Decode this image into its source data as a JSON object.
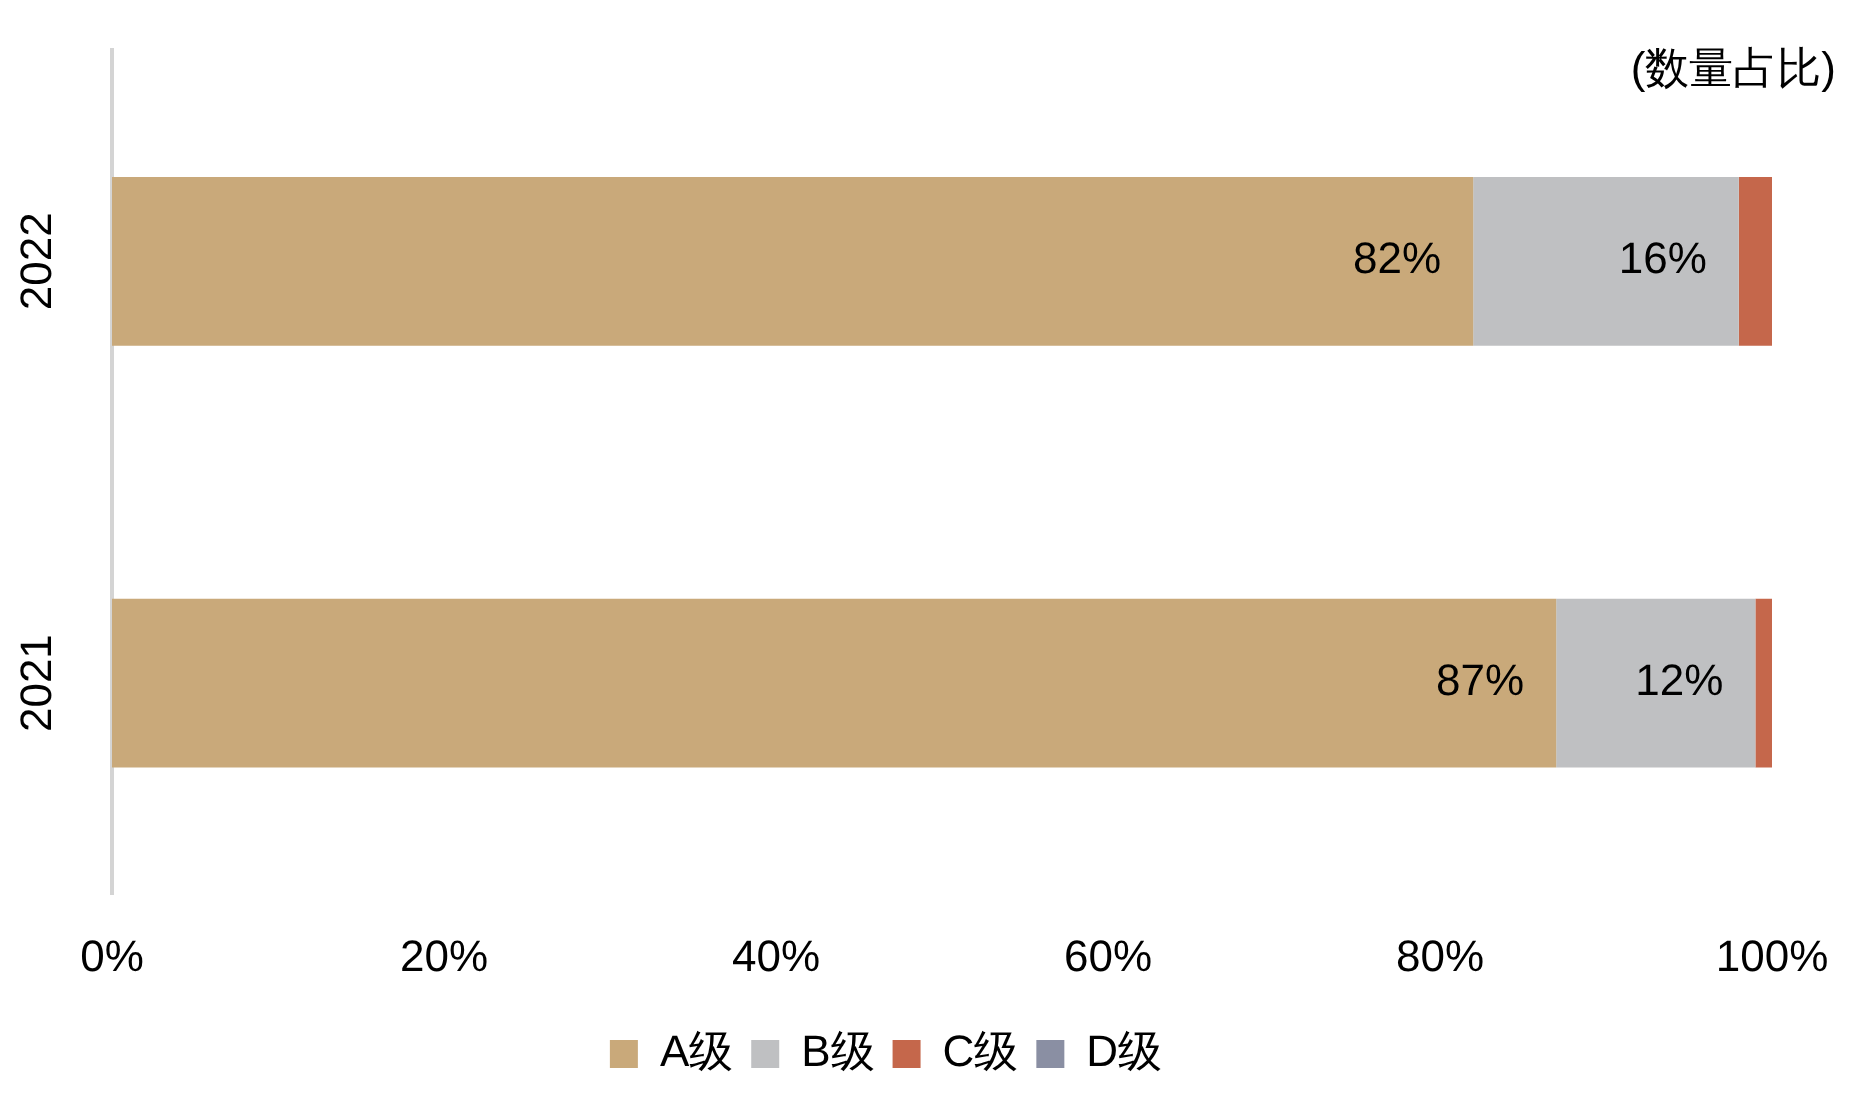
{
  "chart_data": {
    "type": "bar",
    "orientation": "horizontal",
    "stacked": true,
    "categories": [
      "2022",
      "2021"
    ],
    "series": [
      {
        "name": "A级",
        "color": "#c9a97a",
        "values": [
          82,
          87
        ],
        "value_labels": [
          "82%",
          "87%"
        ]
      },
      {
        "name": "B级",
        "color": "#bfc0c2",
        "values": [
          16,
          12
        ],
        "value_labels": [
          "16%",
          "12%"
        ]
      },
      {
        "name": "C级",
        "color": "#c5674b",
        "values": [
          2,
          1
        ]
      },
      {
        "name": "D级",
        "color": "#8a8fa3",
        "values": [
          0,
          0
        ]
      }
    ],
    "xlim": [
      0,
      100
    ],
    "xticks": [
      {
        "value": 0,
        "label": "0%"
      },
      {
        "value": 20,
        "label": "20%"
      },
      {
        "value": 40,
        "label": "40%"
      },
      {
        "value": 60,
        "label": "60%"
      },
      {
        "value": 80,
        "label": "80%"
      },
      {
        "value": 100,
        "label": "100%"
      }
    ],
    "legend": "bottom",
    "grid": false,
    "annotations": [
      "(数量占比)"
    ]
  }
}
